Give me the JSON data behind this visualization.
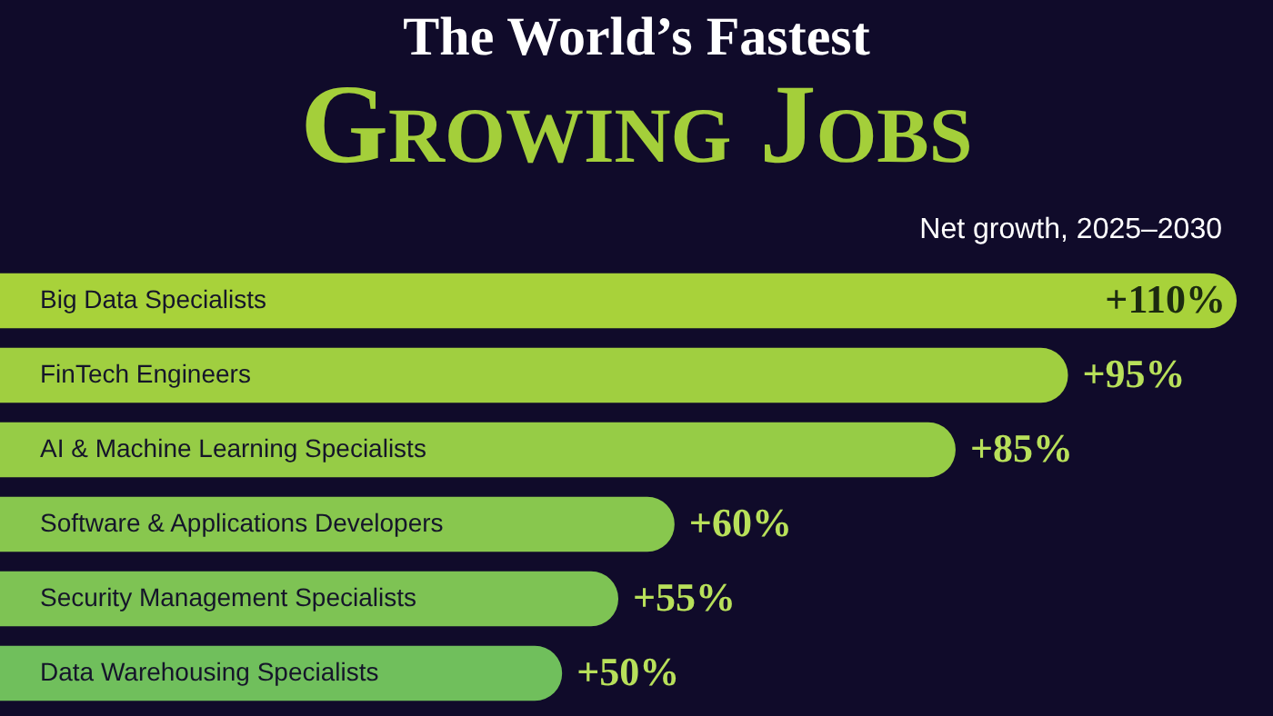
{
  "chart_data": {
    "type": "bar",
    "orientation": "horizontal",
    "title": "The World’s Fastest",
    "subtitle": "Growing Jobs",
    "annotations": [
      "Net growth, 2025–2030"
    ],
    "categories": [
      "Big Data Specialists",
      "FinTech Engineers",
      "AI & Machine Learning Specialists",
      "Software & Applications Developers",
      "Security Management Specialists",
      "Data Warehousing Specialists"
    ],
    "values": [
      110,
      95,
      85,
      60,
      55,
      50
    ],
    "value_labels": [
      "+110%",
      "+95%",
      "+85%",
      "+60%",
      "+55%",
      "+50%"
    ],
    "colors": [
      "#a8d23a",
      "#a0cf40",
      "#96cc46",
      "#88c74e",
      "#7ec354",
      "#70bf5c"
    ],
    "xlim": [
      0,
      110
    ]
  }
}
